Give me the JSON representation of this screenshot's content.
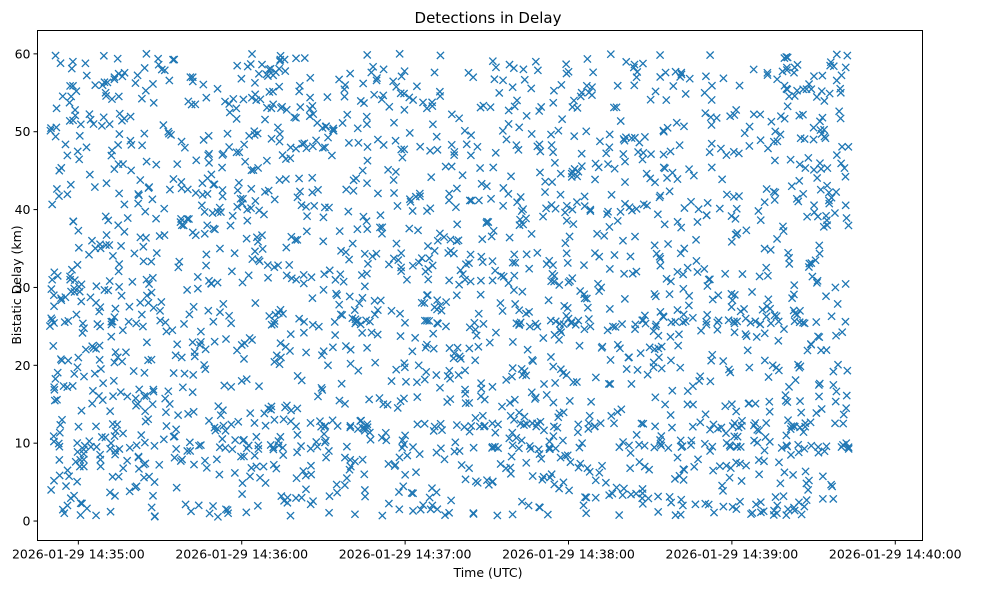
{
  "chart_data": {
    "type": "scatter",
    "title": "Detections in Delay",
    "xlabel": "Time (UTC)",
    "ylabel": "Bistatic Delay (km)",
    "marker": "x",
    "marker_color": "#1f77b4",
    "x_unit": "seconds after 2026-01-29 14:35:00 UTC",
    "xlim": [
      -15,
      310
    ],
    "ylim": [
      -2.5,
      63
    ],
    "x_ticks": [
      {
        "value": 0,
        "label": "2026-01-29 14:35:00"
      },
      {
        "value": 60,
        "label": "2026-01-29 14:36:00"
      },
      {
        "value": 120,
        "label": "2026-01-29 14:37:00"
      },
      {
        "value": 180,
        "label": "2026-01-29 14:38:00"
      },
      {
        "value": 240,
        "label": "2026-01-29 14:39:00"
      },
      {
        "value": 300,
        "label": "2026-01-29 14:40:00"
      }
    ],
    "y_ticks": [
      {
        "value": 0,
        "label": "0"
      },
      {
        "value": 10,
        "label": "10"
      },
      {
        "value": 20,
        "label": "20"
      },
      {
        "value": 30,
        "label": "30"
      },
      {
        "value": 40,
        "label": "40"
      },
      {
        "value": 50,
        "label": "50"
      },
      {
        "value": 60,
        "label": "60"
      }
    ],
    "grid": false,
    "x_span": [
      -10.5,
      283
    ],
    "point_count_approx": 2000,
    "series": [
      {
        "name": "detections",
        "x": [
          -10,
          -9,
          -8,
          -7,
          -6,
          -4,
          -3,
          -2,
          0,
          2,
          3,
          5,
          8,
          10,
          12,
          15,
          18,
          22,
          25,
          28,
          30,
          33,
          35,
          38,
          40,
          42,
          45,
          48,
          50,
          52,
          55,
          58,
          60,
          62,
          65,
          68,
          70,
          72,
          75,
          78,
          80,
          82,
          85,
          88,
          90,
          92,
          95,
          98,
          100,
          102,
          105,
          108,
          110,
          112,
          115,
          118,
          120,
          122,
          125,
          128,
          130,
          132,
          135,
          138,
          140,
          142,
          145,
          148,
          150,
          152,
          155,
          158,
          160,
          162,
          165,
          168,
          170,
          172,
          175,
          178,
          180,
          182,
          185,
          188,
          190,
          192,
          195,
          198,
          200,
          202,
          205,
          208,
          210,
          212,
          215,
          218,
          220,
          222,
          225,
          228,
          230,
          232,
          235,
          238,
          240,
          242,
          245,
          248,
          250,
          252,
          255,
          258,
          260,
          262,
          265,
          268,
          270,
          272,
          275,
          278,
          280,
          282
        ],
        "y": [
          4,
          29,
          53,
          45,
          13,
          2,
          31,
          59,
          21,
          7,
          48,
          36,
          25,
          55,
          10,
          33,
          16,
          42,
          60,
          5,
          27,
          50,
          19,
          38,
          9,
          57,
          23,
          46,
          12,
          35,
          1,
          53,
          18,
          40,
          28,
          7,
          58,
          13,
          47,
          24,
          31,
          3,
          52,
          16,
          39,
          9,
          29,
          56,
          22,
          44,
          6,
          34,
          49,
          15,
          27,
          60,
          11,
          41,
          20,
          53,
          2,
          36,
          25,
          47,
          9,
          31,
          57,
          17,
          43,
          5,
          28,
          51,
          13,
          38,
          22,
          59,
          8,
          33,
          46,
          19,
          26,
          54,
          10,
          40,
          3,
          30,
          48,
          14,
          36,
          21,
          57,
          7,
          44,
          25,
          50,
          12,
          32,
          2,
          41,
          18,
          55,
          9,
          29,
          47,
          15,
          37,
          24,
          58,
          6,
          35,
          20,
          52,
          11,
          43,
          27,
          4,
          49,
          16,
          38,
          30,
          55,
          10
        ]
      }
    ],
    "dense_bands_y": [
      9.5,
      12.3,
      25.5
    ]
  }
}
